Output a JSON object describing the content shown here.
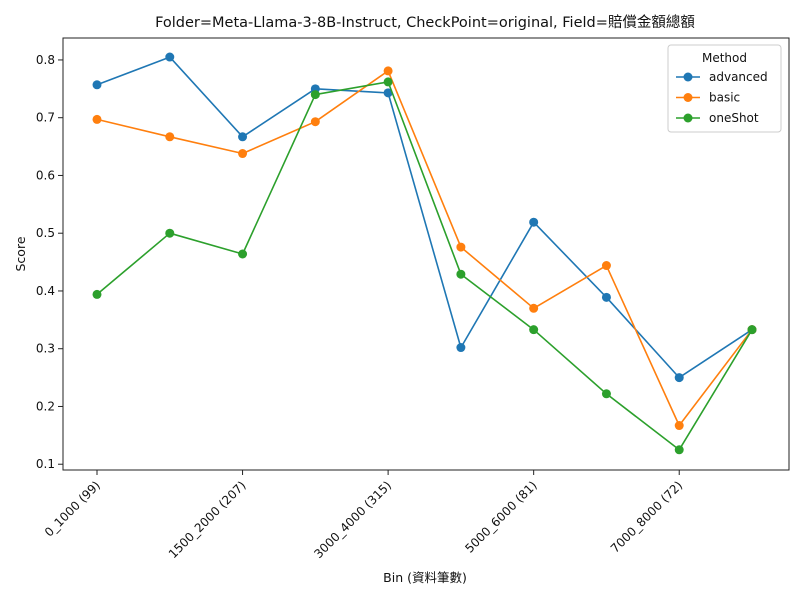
{
  "chart_data": {
    "type": "line",
    "title": "Folder=Meta-Llama-3-8B-Instruct, CheckPoint=original, Field=賠償金額總額",
    "xlabel": "Bin (資料筆數)",
    "ylabel": "Score",
    "categories": [
      "0_1000 (99)",
      "",
      "1500_2000 (207)",
      "",
      "3000_4000 (315)",
      "",
      "5000_6000 (81)",
      "",
      "7000_8000 (72)",
      ""
    ],
    "x_tick_labels": [
      "0_1000 (99)",
      "1500_2000 (207)",
      "3000_4000 (315)",
      "5000_6000 (81)",
      "7000_8000 (72)"
    ],
    "y_ticks": [
      "0.1",
      "0.2",
      "0.3",
      "0.4",
      "0.5",
      "0.6",
      "0.7",
      "0.8"
    ],
    "ylim": [
      0.09,
      0.838
    ],
    "grid": false,
    "legend": {
      "title": "Method",
      "placement": "top-right"
    },
    "series": [
      {
        "name": "advanced",
        "color": "#1f77b4",
        "values": [
          0.757,
          0.805,
          0.667,
          0.75,
          0.743,
          0.302,
          0.519,
          0.389,
          0.25,
          0.333
        ]
      },
      {
        "name": "basic",
        "color": "#ff7f0e",
        "values": [
          0.697,
          0.667,
          0.638,
          0.693,
          0.781,
          0.476,
          0.37,
          0.444,
          0.167,
          0.333
        ]
      },
      {
        "name": "oneShot",
        "color": "#2ca02c",
        "values": [
          0.394,
          0.5,
          0.464,
          0.74,
          0.762,
          0.429,
          0.333,
          0.222,
          0.125,
          0.333
        ]
      }
    ]
  }
}
